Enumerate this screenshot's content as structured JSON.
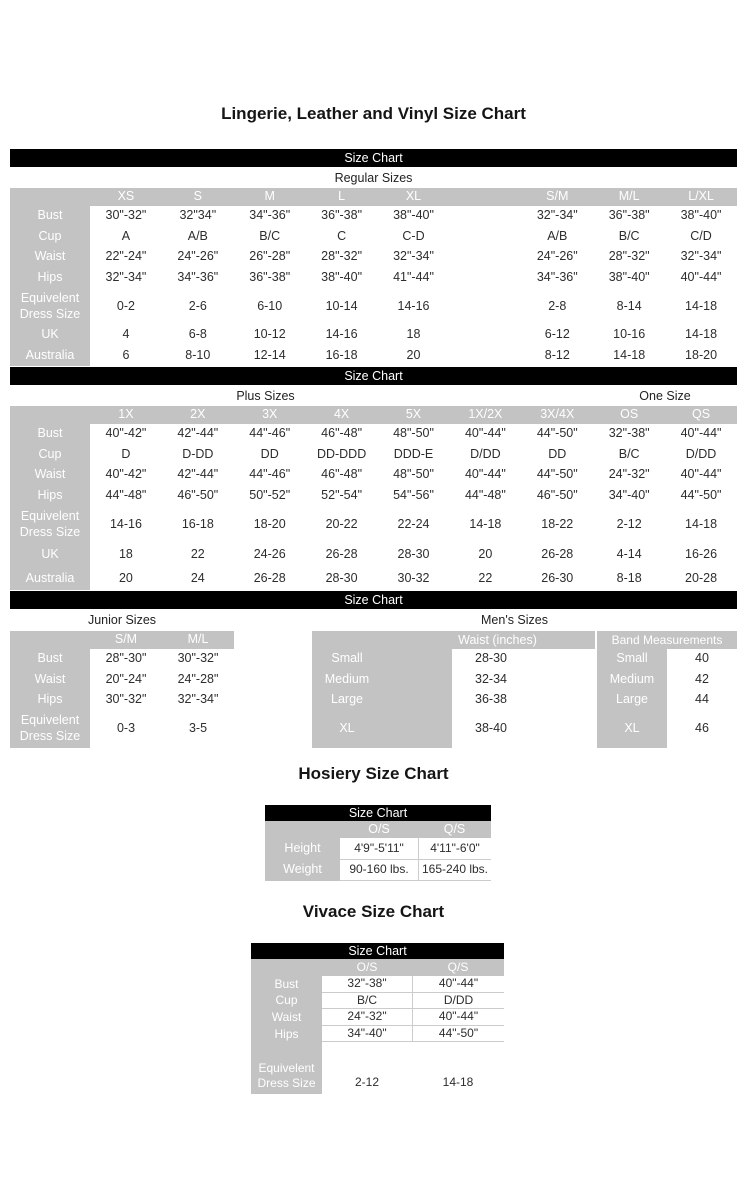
{
  "page": {
    "main_title": "Lingerie, Leather and Vinyl Size Chart",
    "hosiery_title": "Hosiery Size Chart",
    "vivace_title": "Vivace Size Chart",
    "bar_label": "Size Chart"
  },
  "colors": {
    "bar_bg": "#000000",
    "header_bg": "#c3c3c3",
    "header_text": "#ffffff",
    "data_text": "#2d2d2d"
  },
  "regular": {
    "section_label": "Regular Sizes",
    "columns": [
      "XS",
      "S",
      "M",
      "L",
      "XL",
      "",
      "S/M",
      "M/L",
      "L/XL"
    ],
    "rows": [
      {
        "label": "Bust",
        "cells": [
          "30\"-32\"",
          "32\"34\"",
          "34\"-36\"",
          "36\"-38\"",
          "38\"-40\"",
          "",
          "32\"-34\"",
          "36\"-38\"",
          "38\"-40\""
        ]
      },
      {
        "label": "Cup",
        "cells": [
          "A",
          "A/B",
          "B/C",
          "C",
          "C-D",
          "",
          "A/B",
          "B/C",
          "C/D"
        ]
      },
      {
        "label": "Waist",
        "cells": [
          "22\"-24\"",
          "24\"-26\"",
          "26\"-28\"",
          "28\"-32\"",
          "32\"-34\"",
          "",
          "24\"-26\"",
          "28\"-32\"",
          "32\"-34\""
        ]
      },
      {
        "label": "Hips",
        "cells": [
          "32\"-34\"",
          "34\"-36\"",
          "36\"-38\"",
          "38\"-40\"",
          "41\"-44\"",
          "",
          "34\"-36\"",
          "38\"-40\"",
          "40\"-44\""
        ]
      },
      {
        "label": "Equivelent Dress Size",
        "cells": [
          "0-2",
          "2-6",
          "6-10",
          "10-14",
          "14-16",
          "",
          "2-8",
          "8-14",
          "14-18"
        ]
      },
      {
        "label": "UK",
        "cells": [
          "4",
          "6-8",
          "10-12",
          "14-16",
          "18",
          "",
          "6-12",
          "10-16",
          "14-18"
        ]
      },
      {
        "label": "Australia",
        "cells": [
          "6",
          "8-10",
          "12-14",
          "16-18",
          "20",
          "",
          "8-12",
          "14-18",
          "18-20"
        ]
      }
    ]
  },
  "plus": {
    "section_label_left": "Plus Sizes",
    "section_label_right": "One Size",
    "columns": [
      "1X",
      "2X",
      "3X",
      "4X",
      "5X",
      "1X/2X",
      "3X/4X",
      "OS",
      "QS"
    ],
    "rows": [
      {
        "label": "Bust",
        "cells": [
          "40\"-42\"",
          "42\"-44\"",
          "44\"-46\"",
          "46\"-48\"",
          "48\"-50\"",
          "40\"-44\"",
          "44\"-50\"",
          "32\"-38\"",
          "40\"-44\""
        ]
      },
      {
        "label": "Cup",
        "cells": [
          "D",
          "D-DD",
          "DD",
          "DD-DDD",
          "DDD-E",
          "D/DD",
          "DD",
          "B/C",
          "D/DD"
        ]
      },
      {
        "label": "Waist",
        "cells": [
          "40\"-42\"",
          "42\"-44\"",
          "44\"-46\"",
          "46\"-48\"",
          "48\"-50\"",
          "40\"-44\"",
          "44\"-50\"",
          "24\"-32\"",
          "40\"-44\""
        ]
      },
      {
        "label": "Hips",
        "cells": [
          "44\"-48\"",
          "46\"-50\"",
          "50\"-52\"",
          "52\"-54\"",
          "54\"-56\"",
          "44\"-48\"",
          "46\"-50\"",
          "34\"-40\"",
          "44\"-50\""
        ]
      },
      {
        "label": "Equivelent Dress Size",
        "cells": [
          "14-16",
          "16-18",
          "18-20",
          "20-22",
          "22-24",
          "14-18",
          "18-22",
          "2-12",
          "14-18"
        ]
      },
      {
        "label": "UK",
        "cells": [
          "18",
          "22",
          "24-26",
          "26-28",
          "28-30",
          "20",
          "26-28",
          "4-14",
          "16-26"
        ]
      },
      {
        "label": "Australia",
        "cells": [
          "20",
          "24",
          "26-28",
          "28-30",
          "30-32",
          "22",
          "26-30",
          "8-18",
          "20-28"
        ]
      }
    ]
  },
  "junior": {
    "section_label": "Junior Sizes",
    "columns": [
      "S/M",
      "M/L"
    ],
    "rows": [
      {
        "label": "Bust",
        "cells": [
          "28\"-30\"",
          "30\"-32\""
        ]
      },
      {
        "label": "Waist",
        "cells": [
          "20\"-24\"",
          "24\"-28\""
        ]
      },
      {
        "label": "Hips",
        "cells": [
          "30\"-32\"",
          "32\"-34\""
        ]
      },
      {
        "label": "Equivelent Dress Size",
        "cells": [
          "0-3",
          "3-5"
        ]
      }
    ]
  },
  "mens": {
    "section_label": "Men's Sizes",
    "waist_header": "Waist (inches)",
    "waist_rows": [
      {
        "label": "Small",
        "value": "28-30"
      },
      {
        "label": "Medium",
        "value": "32-34"
      },
      {
        "label": "Large",
        "value": "36-38"
      },
      {
        "label": "XL",
        "value": "38-40"
      }
    ],
    "band_header": "Band Measurements",
    "band_rows": [
      {
        "label": "Small",
        "value": "40"
      },
      {
        "label": "Medium",
        "value": "42"
      },
      {
        "label": "Large",
        "value": "44"
      },
      {
        "label": "XL",
        "value": "46"
      }
    ]
  },
  "hosiery": {
    "columns": [
      "O/S",
      "Q/S"
    ],
    "rows": [
      {
        "label": "Height",
        "cells": [
          "4'9\"-5'11\"",
          "4'11\"-6'0\""
        ]
      },
      {
        "label": "Weight",
        "cells": [
          "90-160 lbs.",
          "165-240 lbs."
        ]
      }
    ]
  },
  "vivace": {
    "columns": [
      "O/S",
      "Q/S"
    ],
    "rows": [
      {
        "label": "Bust",
        "cells": [
          "32\"-38\"",
          "40\"-44\""
        ]
      },
      {
        "label": "Cup",
        "cells": [
          "B/C",
          "D/DD"
        ]
      },
      {
        "label": "Waist",
        "cells": [
          "24\"-32\"",
          "40\"-44\""
        ]
      },
      {
        "label": "Hips",
        "cells": [
          "34\"-40\"",
          "44\"-50\""
        ]
      },
      {
        "label": "Equivelent Dress Size",
        "cells": [
          "2-12",
          "14-18"
        ]
      }
    ]
  }
}
